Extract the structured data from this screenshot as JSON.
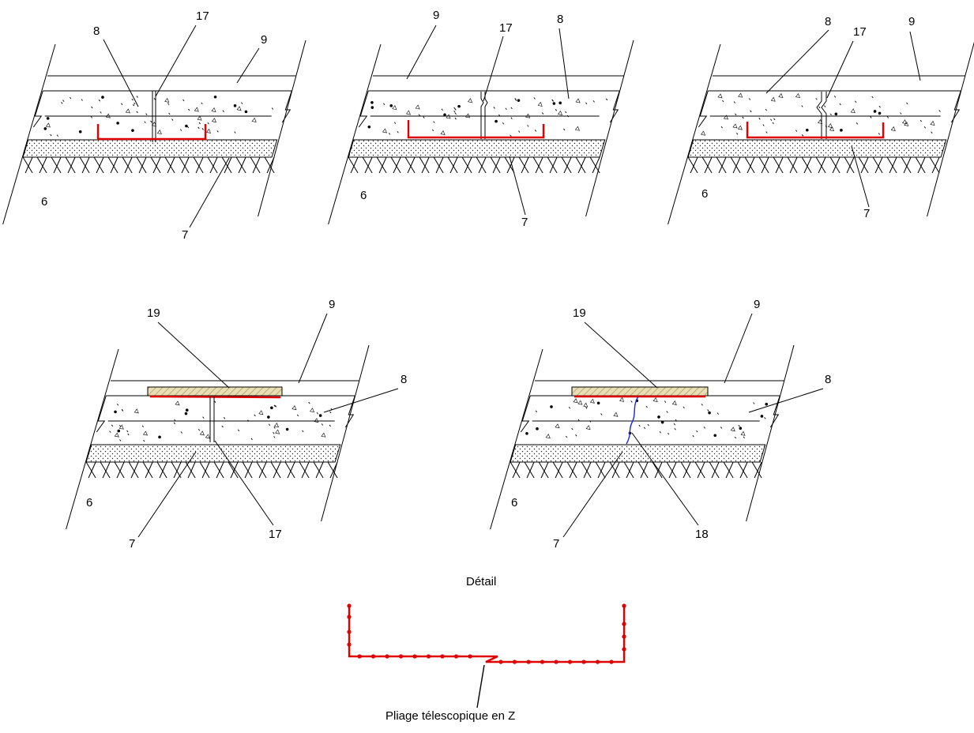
{
  "panels": [
    {
      "id": "panel-1",
      "labels": [
        "8",
        "17",
        "9",
        "6",
        "7"
      ]
    },
    {
      "id": "panel-2",
      "labels": [
        "9",
        "17",
        "8",
        "6",
        "7"
      ]
    },
    {
      "id": "panel-3",
      "labels": [
        "8",
        "17",
        "9",
        "6",
        "7"
      ]
    },
    {
      "id": "panel-4",
      "labels": [
        "19",
        "9",
        "8",
        "6",
        "7",
        "17"
      ]
    },
    {
      "id": "panel-5",
      "labels": [
        "19",
        "9",
        "8",
        "6",
        "7",
        "18"
      ]
    }
  ],
  "detail": {
    "title": "Détail",
    "caption": "Pliage télescopique en Z"
  },
  "colors": {
    "membrane": "#e00000",
    "crack": "#1a2ad8",
    "strip": "#e8dfb8",
    "lines": "#000000"
  }
}
